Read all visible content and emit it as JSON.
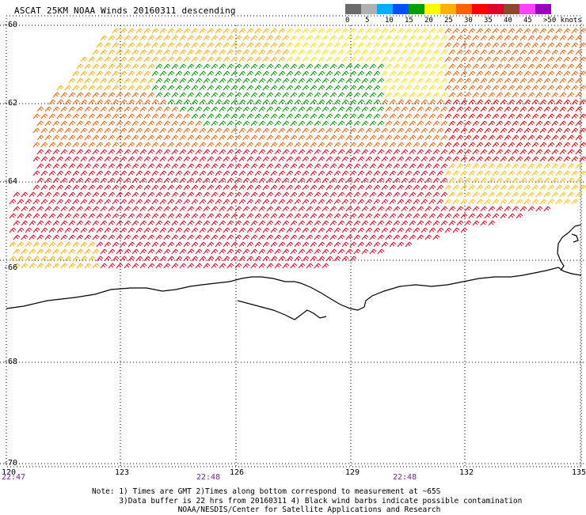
{
  "title": "ASCAT 25KM NOAA Winds 20160311 descending",
  "legend": {
    "labels": [
      "0",
      "5",
      "10",
      "15",
      "20",
      "25",
      "30",
      "35",
      "40",
      "45",
      ">50 knots"
    ],
    "colors": [
      "#6b6b6b",
      "#b0b0b0",
      "#00b0ff",
      "#0050ff",
      "#00a000",
      "#ffff00",
      "#ffb000",
      "#ff6000",
      "#ff0000",
      "#e0002a",
      "#8a4a2a",
      "#ff40ff",
      "#9b00c0"
    ]
  },
  "lat_labels": [
    "-60",
    "-62",
    "-64",
    "-66",
    "-68",
    "-70"
  ],
  "lon_labels": [
    "120",
    "123",
    "126",
    "129",
    "132",
    "135"
  ],
  "time_labels": [
    "22:47",
    "22:48",
    "22:48"
  ],
  "note_lines": [
    "Note: 1) Times are GMT 2)Times along bottom correspond to measurement at ~65S",
    "      3)Data buffer is 22 hrs from 20160311 4) Black wind barbs indicate possible contamination",
    "                   NOAA/NESDIS/Center for Satellite Applications and Research"
  ]
}
